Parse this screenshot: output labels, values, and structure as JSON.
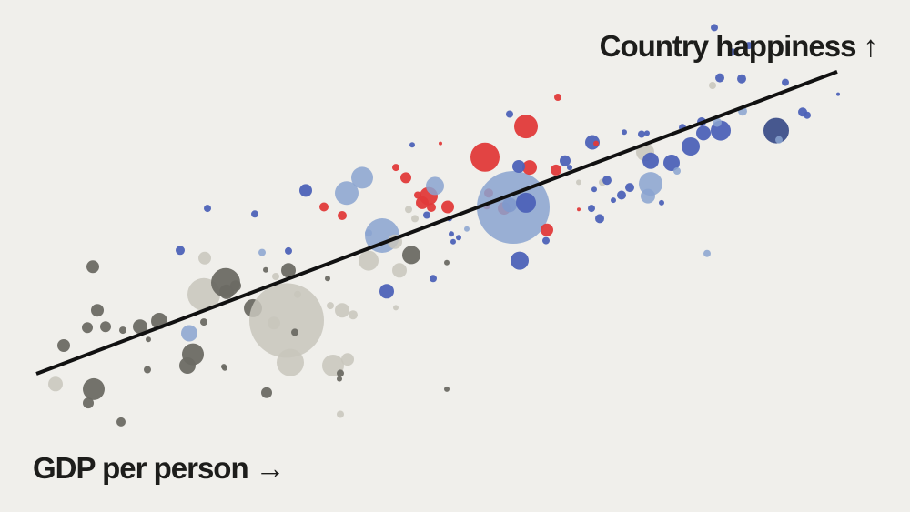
{
  "chart_data": {
    "type": "scatter",
    "xlabel": "GDP per person",
    "ylabel": "Country happiness",
    "x_arrow": "→",
    "y_arrow": "↑",
    "xlim": [
      0,
      100
    ],
    "ylim": [
      0,
      100
    ],
    "grid": false,
    "legend": "none",
    "trendline": {
      "x": [
        4,
        92
      ],
      "y": [
        27,
        86
      ],
      "color": "#111111"
    },
    "colors": {
      "dark_gray": "#6b6a64",
      "light_gray": "#c8c6bc",
      "light_blue": "#8aa3d0",
      "blue": "#4d62b8",
      "navy": "#3d4f8a",
      "red": "#e03a3a"
    },
    "points": [
      {
        "x": 6.1,
        "y": 25.0,
        "s": 8,
        "c": "light_gray"
      },
      {
        "x": 7.0,
        "y": 32.5,
        "s": 7,
        "c": "dark_gray"
      },
      {
        "x": 9.6,
        "y": 36.0,
        "s": 6,
        "c": "dark_gray"
      },
      {
        "x": 10.2,
        "y": 47.9,
        "s": 7,
        "c": "dark_gray"
      },
      {
        "x": 10.7,
        "y": 39.4,
        "s": 7,
        "c": "dark_gray"
      },
      {
        "x": 10.3,
        "y": 24.0,
        "s": 12,
        "c": "dark_gray"
      },
      {
        "x": 9.7,
        "y": 21.3,
        "s": 6,
        "c": "dark_gray"
      },
      {
        "x": 11.6,
        "y": 36.2,
        "s": 6,
        "c": "dark_gray"
      },
      {
        "x": 13.3,
        "y": 17.6,
        "s": 5,
        "c": "dark_gray"
      },
      {
        "x": 13.5,
        "y": 35.5,
        "s": 4,
        "c": "dark_gray"
      },
      {
        "x": 15.4,
        "y": 36.2,
        "s": 8,
        "c": "dark_gray"
      },
      {
        "x": 16.2,
        "y": 27.8,
        "s": 4,
        "c": "dark_gray"
      },
      {
        "x": 17.5,
        "y": 37.3,
        "s": 9,
        "c": "dark_gray"
      },
      {
        "x": 19.8,
        "y": 51.1,
        "s": 5,
        "c": "blue"
      },
      {
        "x": 20.8,
        "y": 34.9,
        "s": 9,
        "c": "light_blue"
      },
      {
        "x": 21.2,
        "y": 30.8,
        "s": 12,
        "c": "dark_gray"
      },
      {
        "x": 20.6,
        "y": 28.6,
        "s": 9,
        "c": "dark_gray"
      },
      {
        "x": 22.4,
        "y": 42.5,
        "s": 18,
        "c": "light_gray"
      },
      {
        "x": 22.5,
        "y": 49.6,
        "s": 7,
        "c": "light_gray"
      },
      {
        "x": 22.4,
        "y": 37.1,
        "s": 4,
        "c": "dark_gray"
      },
      {
        "x": 24.6,
        "y": 28.4,
        "s": 3,
        "c": "dark_gray"
      },
      {
        "x": 24.8,
        "y": 44.8,
        "s": 16,
        "c": "dark_gray"
      },
      {
        "x": 24.9,
        "y": 43.0,
        "s": 8,
        "c": "dark_gray"
      },
      {
        "x": 25.9,
        "y": 44.2,
        "s": 6,
        "c": "dark_gray"
      },
      {
        "x": 27.8,
        "y": 39.8,
        "s": 10,
        "c": "dark_gray"
      },
      {
        "x": 28.8,
        "y": 50.7,
        "s": 4,
        "c": "light_blue"
      },
      {
        "x": 29.3,
        "y": 23.3,
        "s": 6,
        "c": "dark_gray"
      },
      {
        "x": 30.1,
        "y": 36.9,
        "s": 7,
        "c": "light_gray"
      },
      {
        "x": 30.3,
        "y": 46.0,
        "s": 4,
        "c": "light_gray"
      },
      {
        "x": 31.5,
        "y": 37.4,
        "s": 41,
        "c": "light_gray"
      },
      {
        "x": 31.9,
        "y": 29.2,
        "s": 15,
        "c": "light_gray"
      },
      {
        "x": 31.7,
        "y": 47.2,
        "s": 8,
        "c": "dark_gray"
      },
      {
        "x": 32.7,
        "y": 42.5,
        "s": 4,
        "c": "light_gray"
      },
      {
        "x": 28.0,
        "y": 58.2,
        "s": 4,
        "c": "blue"
      },
      {
        "x": 32.4,
        "y": 35.1,
        "s": 4,
        "c": "dark_gray"
      },
      {
        "x": 36.6,
        "y": 28.6,
        "s": 12,
        "c": "light_gray"
      },
      {
        "x": 36.3,
        "y": 40.3,
        "s": 4,
        "c": "light_gray"
      },
      {
        "x": 37.4,
        "y": 27.1,
        "s": 4,
        "c": "dark_gray"
      },
      {
        "x": 37.6,
        "y": 39.4,
        "s": 8,
        "c": "light_gray"
      },
      {
        "x": 38.2,
        "y": 29.8,
        "s": 7,
        "c": "light_gray"
      },
      {
        "x": 38.8,
        "y": 38.5,
        "s": 5,
        "c": "light_gray"
      },
      {
        "x": 37.4,
        "y": 19.1,
        "s": 4,
        "c": "light_gray"
      },
      {
        "x": 36.0,
        "y": 45.6,
        "s": 3,
        "c": "dark_gray"
      },
      {
        "x": 33.6,
        "y": 62.8,
        "s": 7,
        "c": "blue"
      },
      {
        "x": 35.6,
        "y": 59.6,
        "s": 5,
        "c": "red"
      },
      {
        "x": 37.6,
        "y": 57.9,
        "s": 5,
        "c": "red"
      },
      {
        "x": 38.1,
        "y": 62.3,
        "s": 13,
        "c": "light_blue"
      },
      {
        "x": 39.8,
        "y": 65.3,
        "s": 12,
        "c": "light_blue"
      },
      {
        "x": 40.5,
        "y": 49.1,
        "s": 11,
        "c": "light_gray"
      },
      {
        "x": 40.5,
        "y": 54.5,
        "s": 4,
        "c": "light_blue"
      },
      {
        "x": 42.5,
        "y": 43.1,
        "s": 8,
        "c": "blue"
      },
      {
        "x": 42.0,
        "y": 54.0,
        "s": 19,
        "c": "light_blue"
      },
      {
        "x": 43.4,
        "y": 52.8,
        "s": 8,
        "c": "light_gray"
      },
      {
        "x": 43.5,
        "y": 67.3,
        "s": 4,
        "c": "red"
      },
      {
        "x": 44.6,
        "y": 65.3,
        "s": 6,
        "c": "red"
      },
      {
        "x": 43.9,
        "y": 47.2,
        "s": 8,
        "c": "light_gray"
      },
      {
        "x": 45.2,
        "y": 50.2,
        "s": 10,
        "c": "dark_gray"
      },
      {
        "x": 44.9,
        "y": 59.1,
        "s": 4,
        "c": "light_gray"
      },
      {
        "x": 45.6,
        "y": 57.3,
        "s": 4,
        "c": "light_gray"
      },
      {
        "x": 45.3,
        "y": 71.7,
        "s": 3,
        "c": "blue"
      },
      {
        "x": 45.9,
        "y": 61.9,
        "s": 4,
        "c": "red"
      },
      {
        "x": 46.4,
        "y": 60.4,
        "s": 7,
        "c": "red"
      },
      {
        "x": 47.1,
        "y": 61.7,
        "s": 10,
        "c": "red"
      },
      {
        "x": 47.4,
        "y": 59.5,
        "s": 5,
        "c": "red"
      },
      {
        "x": 47.8,
        "y": 63.7,
        "s": 10,
        "c": "light_blue"
      },
      {
        "x": 46.9,
        "y": 58.0,
        "s": 4,
        "c": "blue"
      },
      {
        "x": 48.4,
        "y": 72.0,
        "s": 2,
        "c": "red"
      },
      {
        "x": 49.2,
        "y": 59.6,
        "s": 7,
        "c": "red"
      },
      {
        "x": 49.4,
        "y": 57.3,
        "s": 3,
        "c": "blue"
      },
      {
        "x": 49.6,
        "y": 54.3,
        "s": 3,
        "c": "blue"
      },
      {
        "x": 49.1,
        "y": 48.7,
        "s": 3,
        "c": "dark_gray"
      },
      {
        "x": 47.6,
        "y": 45.6,
        "s": 4,
        "c": "blue"
      },
      {
        "x": 49.8,
        "y": 52.8,
        "s": 3,
        "c": "blue"
      },
      {
        "x": 50.4,
        "y": 53.6,
        "s": 3,
        "c": "blue"
      },
      {
        "x": 51.3,
        "y": 55.3,
        "s": 3,
        "c": "light_blue"
      },
      {
        "x": 49.1,
        "y": 24.0,
        "s": 3,
        "c": "dark_gray"
      },
      {
        "x": 53.3,
        "y": 69.3,
        "s": 16,
        "c": "red"
      },
      {
        "x": 53.7,
        "y": 62.3,
        "s": 5,
        "c": "red"
      },
      {
        "x": 53.5,
        "y": 59.8,
        "s": 4,
        "c": "red"
      },
      {
        "x": 55.4,
        "y": 59.3,
        "s": 7,
        "c": "red"
      },
      {
        "x": 56.0,
        "y": 60.0,
        "s": 8,
        "c": "blue"
      },
      {
        "x": 56.4,
        "y": 59.5,
        "s": 40,
        "c": "light_blue"
      },
      {
        "x": 56.0,
        "y": 77.7,
        "s": 4,
        "c": "blue"
      },
      {
        "x": 57.8,
        "y": 75.3,
        "s": 13,
        "c": "red"
      },
      {
        "x": 57.8,
        "y": 60.4,
        "s": 11,
        "c": "blue"
      },
      {
        "x": 58.2,
        "y": 67.3,
        "s": 8,
        "c": "red"
      },
      {
        "x": 57.1,
        "y": 49.1,
        "s": 10,
        "c": "blue"
      },
      {
        "x": 57.0,
        "y": 67.5,
        "s": 7,
        "c": "blue"
      },
      {
        "x": 60.1,
        "y": 55.1,
        "s": 7,
        "c": "red"
      },
      {
        "x": 60.0,
        "y": 53.0,
        "s": 4,
        "c": "blue"
      },
      {
        "x": 61.3,
        "y": 81.0,
        "s": 4,
        "c": "red"
      },
      {
        "x": 61.1,
        "y": 66.8,
        "s": 6,
        "c": "red"
      },
      {
        "x": 62.1,
        "y": 68.6,
        "s": 6,
        "c": "blue"
      },
      {
        "x": 62.6,
        "y": 67.3,
        "s": 3,
        "c": "blue"
      },
      {
        "x": 63.6,
        "y": 59.1,
        "s": 2,
        "c": "red"
      },
      {
        "x": 63.6,
        "y": 64.4,
        "s": 3,
        "c": "light_gray"
      },
      {
        "x": 65.1,
        "y": 72.2,
        "s": 8,
        "c": "blue"
      },
      {
        "x": 65.3,
        "y": 63.0,
        "s": 3,
        "c": "blue"
      },
      {
        "x": 65.5,
        "y": 72.0,
        "s": 3,
        "c": "red"
      },
      {
        "x": 65.0,
        "y": 59.3,
        "s": 4,
        "c": "blue"
      },
      {
        "x": 65.9,
        "y": 57.3,
        "s": 5,
        "c": "blue"
      },
      {
        "x": 66.2,
        "y": 64.4,
        "s": 4,
        "c": "light_gray"
      },
      {
        "x": 66.7,
        "y": 64.8,
        "s": 5,
        "c": "blue"
      },
      {
        "x": 67.4,
        "y": 60.9,
        "s": 3,
        "c": "blue"
      },
      {
        "x": 68.3,
        "y": 61.9,
        "s": 5,
        "c": "blue"
      },
      {
        "x": 68.6,
        "y": 74.2,
        "s": 3,
        "c": "blue"
      },
      {
        "x": 69.2,
        "y": 63.4,
        "s": 5,
        "c": "blue"
      },
      {
        "x": 70.5,
        "y": 73.8,
        "s": 4,
        "c": "blue"
      },
      {
        "x": 70.9,
        "y": 70.3,
        "s": 10,
        "c": "light_gray"
      },
      {
        "x": 71.5,
        "y": 68.6,
        "s": 9,
        "c": "blue"
      },
      {
        "x": 71.1,
        "y": 74.0,
        "s": 3,
        "c": "blue"
      },
      {
        "x": 71.5,
        "y": 64.1,
        "s": 13,
        "c": "light_blue"
      },
      {
        "x": 71.2,
        "y": 61.7,
        "s": 8,
        "c": "light_blue"
      },
      {
        "x": 72.7,
        "y": 60.4,
        "s": 3,
        "c": "blue"
      },
      {
        "x": 73.8,
        "y": 68.2,
        "s": 9,
        "c": "blue"
      },
      {
        "x": 74.4,
        "y": 66.6,
        "s": 4,
        "c": "light_blue"
      },
      {
        "x": 75.0,
        "y": 75.1,
        "s": 4,
        "c": "blue"
      },
      {
        "x": 75.9,
        "y": 71.4,
        "s": 10,
        "c": "blue"
      },
      {
        "x": 77.1,
        "y": 76.2,
        "s": 5,
        "c": "blue"
      },
      {
        "x": 77.3,
        "y": 74.0,
        "s": 8,
        "c": "blue"
      },
      {
        "x": 77.7,
        "y": 50.5,
        "s": 4,
        "c": "light_blue"
      },
      {
        "x": 78.3,
        "y": 83.3,
        "s": 4,
        "c": "light_gray"
      },
      {
        "x": 79.1,
        "y": 84.8,
        "s": 5,
        "c": "blue"
      },
      {
        "x": 79.2,
        "y": 74.5,
        "s": 11,
        "c": "blue"
      },
      {
        "x": 78.5,
        "y": 94.6,
        "s": 4,
        "c": "blue"
      },
      {
        "x": 78.8,
        "y": 76.1,
        "s": 5,
        "c": "light_blue"
      },
      {
        "x": 80.5,
        "y": 89.8,
        "s": 4,
        "c": "blue"
      },
      {
        "x": 81.5,
        "y": 84.6,
        "s": 5,
        "c": "blue"
      },
      {
        "x": 82.3,
        "y": 91.1,
        "s": 4,
        "c": "blue"
      },
      {
        "x": 81.6,
        "y": 78.3,
        "s": 5,
        "c": "light_blue"
      },
      {
        "x": 84.8,
        "y": 91.1,
        "s": 2,
        "c": "blue"
      },
      {
        "x": 85.3,
        "y": 74.5,
        "s": 14,
        "c": "navy"
      },
      {
        "x": 85.6,
        "y": 72.7,
        "s": 4,
        "c": "light_blue"
      },
      {
        "x": 86.3,
        "y": 83.9,
        "s": 4,
        "c": "blue"
      },
      {
        "x": 88.2,
        "y": 78.1,
        "s": 5,
        "c": "blue"
      },
      {
        "x": 88.7,
        "y": 77.5,
        "s": 4,
        "c": "blue"
      },
      {
        "x": 92.1,
        "y": 81.6,
        "s": 2,
        "c": "blue"
      },
      {
        "x": 22.8,
        "y": 59.3,
        "s": 4,
        "c": "blue"
      },
      {
        "x": 31.7,
        "y": 51.0,
        "s": 4,
        "c": "blue"
      },
      {
        "x": 29.2,
        "y": 47.3,
        "s": 3,
        "c": "dark_gray"
      },
      {
        "x": 16.3,
        "y": 33.7,
        "s": 3,
        "c": "dark_gray"
      },
      {
        "x": 24.7,
        "y": 28.1,
        "s": 3,
        "c": "dark_gray"
      },
      {
        "x": 37.3,
        "y": 26.0,
        "s": 3,
        "c": "dark_gray"
      },
      {
        "x": 43.5,
        "y": 39.9,
        "s": 3,
        "c": "light_gray"
      }
    ]
  }
}
